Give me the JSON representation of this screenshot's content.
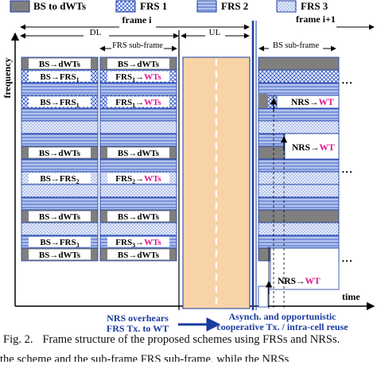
{
  "legend": {
    "items": [
      {
        "id": "bs",
        "label": "BS to dWTs"
      },
      {
        "id": "frs1",
        "label": "FRS 1"
      },
      {
        "id": "frs2",
        "label": "FRS 2"
      },
      {
        "id": "frs3",
        "label": "FRS 3"
      }
    ]
  },
  "axis": {
    "frequency": "frequency",
    "time": "time"
  },
  "frames": {
    "frame_i": "frame i",
    "frame_next": "frame i+1"
  },
  "sections": {
    "dl": "DL",
    "ul": "UL",
    "frs_subframe": "FRS sub-frame",
    "bs_subframe": "BS sub-frame"
  },
  "rows": {
    "bs_dwts": "BS→dWTs",
    "bs_frs": "BS→FRS",
    "frs": "FRS",
    "frs_wts_suffix": "→WTs",
    "frs_arrow": "→",
    "wts": "WTs",
    "sub1": "1",
    "sub2": "2",
    "sub3": "3"
  },
  "nrs": {
    "prefix": "NRS",
    "arrow": "→",
    "target": "WT"
  },
  "notes": {
    "nrs_line1": "NRS overhears",
    "nrs_line2": "FRS Tx. to WT",
    "async_line1": "Asynch. and opportunistic",
    "async_line2": "cooperative Tx. / intra-cell reuse"
  },
  "ellipsis": "• • •",
  "caption": {
    "label": "Fig. 2.",
    "text": "Frame structure of the proposed schemes using FRSs and NRSs."
  },
  "trailing_text": "the scheme and the sub-frame FRS sub-frame, while the NRSs",
  "colors": {
    "bs": "#7f7f7f",
    "frs1_bg": "#ffffff",
    "frs1_fg": "#2b55c8",
    "frs2_bg": "#c9d6f3",
    "frs2_fg": "#2b4fbf",
    "frs3_bg": "#e4ebfa",
    "frs3_fg": "#4a6bd0",
    "ul": "#f8d3a8",
    "wt": "#e0168c",
    "line": "#1a3aa0"
  }
}
